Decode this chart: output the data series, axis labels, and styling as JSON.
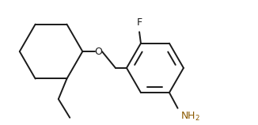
{
  "background": "#ffffff",
  "line_color": "#1a1a1a",
  "line_width": 1.4,
  "font_size": 8.5,
  "fig_width": 3.26,
  "fig_height": 1.58,
  "dpi": 100,
  "nh2_color": "#8B5A00",
  "f_color": "#1a1a1a"
}
